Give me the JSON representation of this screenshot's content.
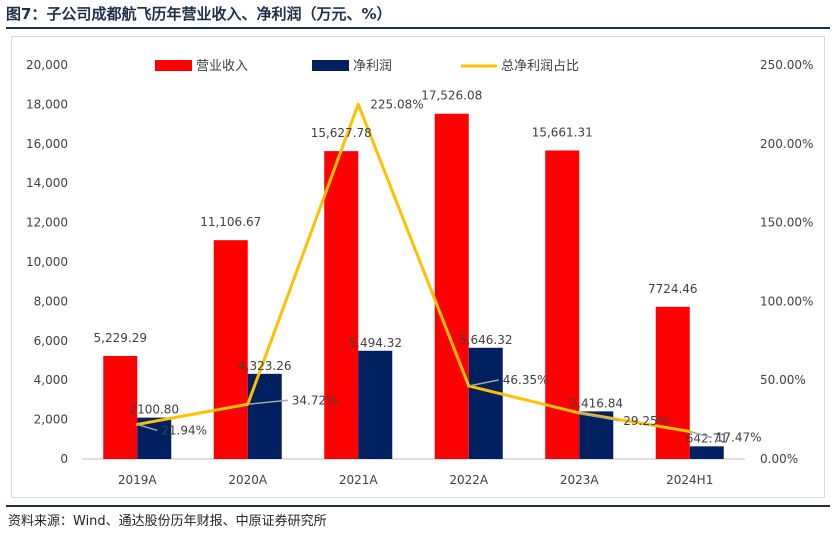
{
  "header": {
    "title": "图7：子公司成都航飞历年营业收入、净利润（万元、%）"
  },
  "footer": {
    "source": "资料来源：Wind、通达股份历年财报、中原证券研究所"
  },
  "chart_data": {
    "type": "bar",
    "categories": [
      "2019A",
      "2020A",
      "2021A",
      "2022A",
      "2023A",
      "2024H1"
    ],
    "series": [
      {
        "name": "营业收入",
        "kind": "bar",
        "axis": "left",
        "color": "#ff0000",
        "values": [
          5229.29,
          11106.67,
          15627.78,
          17526.08,
          15661.31,
          7724.46
        ],
        "labels": [
          "5,229.29",
          "11,106.67",
          "15,627.78",
          "17,526.08",
          "15,661.31",
          "7724.46"
        ]
      },
      {
        "name": "净利润",
        "kind": "bar",
        "axis": "left",
        "color": "#002060",
        "values": [
          2100.8,
          4323.26,
          5494.32,
          5646.32,
          2416.84,
          642.71
        ],
        "labels": [
          "2100.80",
          "4,323.26",
          "5,494.32",
          "5,646.32",
          "2,416.84",
          "642.71"
        ]
      },
      {
        "name": "总净利润占比",
        "kind": "line",
        "axis": "right",
        "color": "#ffc000",
        "values": [
          21.94,
          34.72,
          225.08,
          46.35,
          29.25,
          17.47
        ],
        "labels": [
          "21.94%",
          "34.72%",
          "225.08%",
          "46.35%",
          "29.25%",
          "17.47%"
        ]
      }
    ],
    "left_axis": {
      "ylim": [
        0,
        20000
      ],
      "ticks": [
        "0",
        "2,000",
        "4,000",
        "6,000",
        "8,000",
        "10,000",
        "12,000",
        "14,000",
        "16,000",
        "18,000",
        "20,000"
      ]
    },
    "right_axis": {
      "ylim": [
        0,
        250
      ],
      "ticks": [
        "0.00%",
        "50.00%",
        "100.00%",
        "150.00%",
        "200.00%",
        "250.00%"
      ]
    },
    "legend": "top",
    "grid": false
  }
}
